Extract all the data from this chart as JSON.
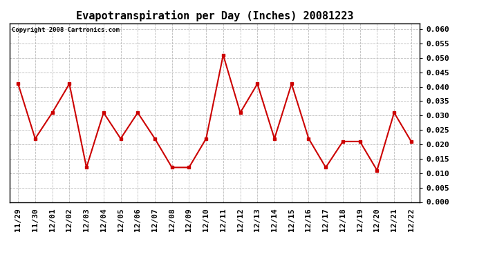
{
  "title": "Evapotranspiration per Day (Inches) 20081223",
  "copyright_text": "Copyright 2008 Cartronics.com",
  "x_labels": [
    "11/29",
    "11/30",
    "12/01",
    "12/02",
    "12/03",
    "12/04",
    "12/05",
    "12/06",
    "12/07",
    "12/08",
    "12/09",
    "12/10",
    "12/11",
    "12/12",
    "12/13",
    "12/14",
    "12/15",
    "12/16",
    "12/17",
    "12/18",
    "12/19",
    "12/20",
    "12/21",
    "12/22"
  ],
  "y_values": [
    0.041,
    0.022,
    0.031,
    0.041,
    0.012,
    0.031,
    0.022,
    0.031,
    0.022,
    0.012,
    0.012,
    0.022,
    0.051,
    0.031,
    0.041,
    0.022,
    0.041,
    0.022,
    0.012,
    0.021,
    0.021,
    0.011,
    0.031,
    0.021
  ],
  "line_color": "#cc0000",
  "marker": "s",
  "marker_size": 3,
  "line_width": 1.5,
  "ylim": [
    0.0,
    0.062
  ],
  "yticks": [
    0.0,
    0.005,
    0.01,
    0.015,
    0.02,
    0.025,
    0.03,
    0.035,
    0.04,
    0.045,
    0.05,
    0.055,
    0.06
  ],
  "background_color": "#ffffff",
  "plot_bg_color": "#ffffff",
  "grid_color": "#bbbbbb",
  "title_fontsize": 11,
  "tick_fontsize": 8,
  "copyright_fontsize": 6.5
}
